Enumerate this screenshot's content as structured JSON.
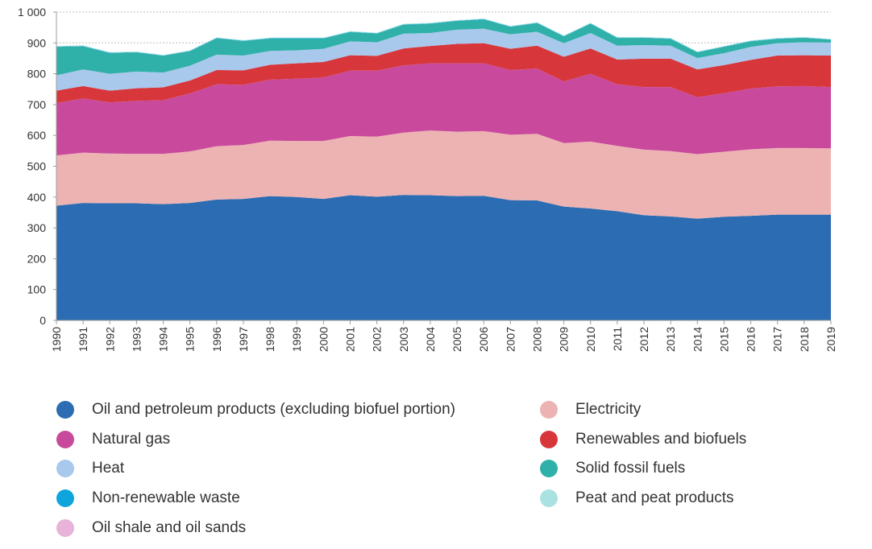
{
  "chart_data": {
    "type": "area",
    "stacked": true,
    "title": "",
    "xlabel": "",
    "ylabel": "",
    "x": [
      1990,
      1991,
      1992,
      1993,
      1994,
      1995,
      1996,
      1997,
      1998,
      1999,
      2000,
      2001,
      2002,
      2003,
      2004,
      2005,
      2006,
      2007,
      2008,
      2009,
      2010,
      2011,
      2012,
      2013,
      2014,
      2015,
      2016,
      2017,
      2018,
      2019
    ],
    "x_tick_labels": [
      "1990",
      "1991",
      "1992",
      "1993",
      "1994",
      "1995",
      "1996",
      "1997",
      "1998",
      "1999",
      "2000",
      "2001",
      "2002",
      "2003",
      "2004",
      "2005",
      "2006",
      "2007",
      "2008",
      "2009",
      "2010",
      "2011",
      "2012",
      "2013",
      "2014",
      "2015",
      "2016",
      "2017",
      "2018",
      "2019"
    ],
    "ylim": [
      0,
      1000
    ],
    "y_ticks": [
      0,
      100,
      200,
      300,
      400,
      500,
      600,
      700,
      800,
      900,
      1000
    ],
    "y_tick_labels": [
      "0",
      "100",
      "200",
      "300",
      "400",
      "500",
      "600",
      "700",
      "800",
      "900",
      "1 000"
    ],
    "grid": "horizontal-dotted",
    "legend_position": "bottom",
    "series": [
      {
        "name": "Oil and petroleum products (excluding biofuel portion)",
        "color": "#2b6cb2",
        "values": [
          372,
          381,
          380,
          380,
          377,
          381,
          392,
          394,
          403,
          400,
          394,
          406,
          401,
          407,
          406,
          403,
          404,
          390,
          389,
          369,
          363,
          354,
          341,
          337,
          330,
          336,
          339,
          343,
          343,
          343
        ]
      },
      {
        "name": "Electricity",
        "color": "#edb3b3",
        "values": [
          163,
          163,
          161,
          160,
          163,
          167,
          173,
          175,
          180,
          182,
          188,
          192,
          195,
          202,
          210,
          209,
          210,
          212,
          216,
          206,
          217,
          212,
          213,
          212,
          209,
          211,
          216,
          216,
          216,
          215
        ]
      },
      {
        "name": "Natural gas",
        "color": "#c94a9c",
        "values": [
          170,
          176,
          166,
          172,
          174,
          188,
          201,
          195,
          198,
          202,
          206,
          212,
          214,
          218,
          218,
          222,
          220,
          210,
          212,
          200,
          220,
          200,
          203,
          208,
          185,
          190,
          197,
          200,
          201,
          199
        ]
      },
      {
        "name": "Renewables and biofuels",
        "color": "#d7363b",
        "values": [
          40,
          40,
          38,
          41,
          42,
          42,
          46,
          47,
          48,
          50,
          50,
          50,
          48,
          55,
          56,
          63,
          65,
          69,
          74,
          80,
          82,
          80,
          92,
          92,
          90,
          91,
          93,
          100,
          100,
          102
        ]
      },
      {
        "name": "Heat",
        "color": "#a8c8ec",
        "values": [
          50,
          54,
          55,
          54,
          48,
          48,
          50,
          48,
          45,
          42,
          43,
          45,
          44,
          48,
          42,
          46,
          47,
          47,
          45,
          44,
          50,
          45,
          44,
          42,
          37,
          39,
          42,
          40,
          42,
          42
        ]
      },
      {
        "name": "Solid fossil fuels",
        "color": "#2fb0a8",
        "values": [
          92,
          75,
          67,
          62,
          54,
          47,
          53,
          47,
          40,
          38,
          33,
          30,
          28,
          29,
          30,
          28,
          30,
          24,
          28,
          22,
          30,
          25,
          23,
          22,
          18,
          20,
          18,
          14,
          14,
          9
        ]
      },
      {
        "name": "Non-renewable waste",
        "color": "#0ea5dd",
        "values": [
          1,
          1,
          1,
          1,
          1,
          1,
          1,
          1,
          1,
          1,
          1,
          1,
          1,
          1,
          1,
          1,
          1,
          1,
          1,
          1,
          1,
          1,
          1,
          1,
          1,
          1,
          1,
          1,
          1,
          1
        ]
      },
      {
        "name": "Peat and peat products",
        "color": "#a9e2e0",
        "values": [
          2,
          2,
          2,
          2,
          2,
          2,
          2,
          2,
          2,
          2,
          2,
          2,
          2,
          2,
          2,
          2,
          2,
          2,
          2,
          2,
          2,
          2,
          2,
          2,
          2,
          2,
          2,
          2,
          2,
          2
        ]
      },
      {
        "name": "Oil shale and oil sands",
        "color": "#e7b3d8",
        "values": [
          0,
          0,
          0,
          0,
          0,
          0,
          0,
          0,
          0,
          0,
          0,
          0,
          0,
          0,
          0,
          0,
          0,
          0,
          0,
          0,
          0,
          0,
          0,
          0,
          0,
          0,
          0,
          0,
          0,
          0
        ]
      }
    ]
  },
  "legend": {
    "items": [
      {
        "label": "Oil and petroleum products (excluding biofuel portion)",
        "color": "#2b6cb2"
      },
      {
        "label": "Electricity",
        "color": "#edb3b3"
      },
      {
        "label": "Natural gas",
        "color": "#c94a9c"
      },
      {
        "label": "Renewables and biofuels",
        "color": "#d7363b"
      },
      {
        "label": "Heat",
        "color": "#a8c8ec"
      },
      {
        "label": "Solid fossil fuels",
        "color": "#2fb0a8"
      },
      {
        "label": "Non-renewable waste",
        "color": "#0ea5dd"
      },
      {
        "label": "Peat and peat products",
        "color": "#a9e2e0"
      },
      {
        "label": "Oil shale and oil sands",
        "color": "#e7b3d8"
      }
    ]
  }
}
